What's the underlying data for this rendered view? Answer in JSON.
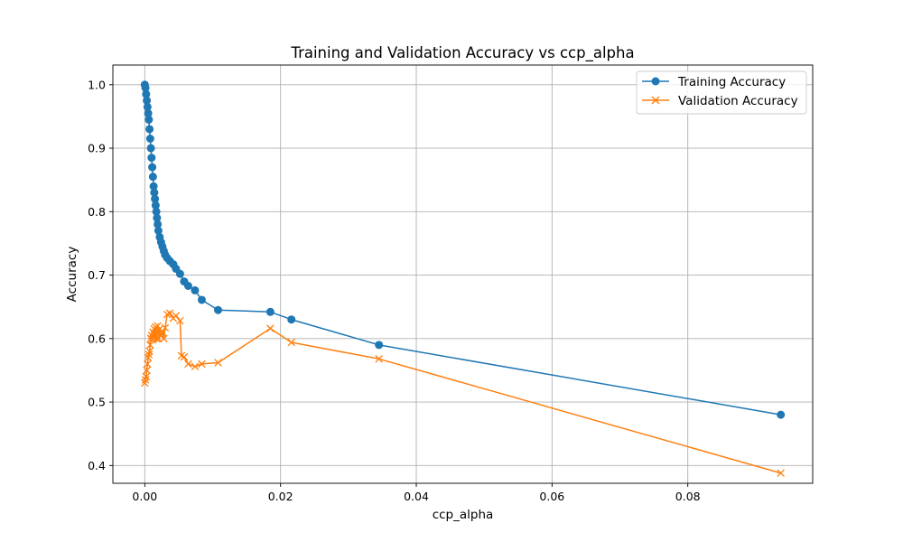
{
  "chart_data": {
    "type": "line",
    "title": "Training and Validation Accuracy vs ccp_alpha",
    "xlabel": "ccp_alpha",
    "ylabel": "Accuracy",
    "xlim": [
      -0.0047,
      0.0984
    ],
    "ylim": [
      0.372,
      1.031
    ],
    "xticks": [
      0.0,
      0.02,
      0.04,
      0.06,
      0.08
    ],
    "xtick_labels": [
      "0.00",
      "0.02",
      "0.04",
      "0.06",
      "0.08"
    ],
    "yticks": [
      0.4,
      0.5,
      0.6,
      0.7,
      0.8,
      0.9,
      1.0
    ],
    "ytick_labels": [
      "0.4",
      "0.5",
      "0.6",
      "0.7",
      "0.8",
      "0.9",
      "1.0"
    ],
    "grid": true,
    "legend_position": "upper right",
    "series": [
      {
        "name": "Training Accuracy",
        "color": "#1f77b4",
        "marker": "circle",
        "x": [
          0.0,
          0.0001,
          0.0002,
          0.0003,
          0.0004,
          0.0005,
          0.0006,
          0.0007,
          0.0008,
          0.0009,
          0.001,
          0.0011,
          0.0012,
          0.0013,
          0.0014,
          0.0015,
          0.0016,
          0.0017,
          0.0018,
          0.0019,
          0.002,
          0.0022,
          0.0024,
          0.0026,
          0.0028,
          0.003,
          0.0033,
          0.0037,
          0.0042,
          0.0046,
          0.0052,
          0.0058,
          0.0064,
          0.0074,
          0.0084,
          0.0108,
          0.0185,
          0.0216,
          0.0345,
          0.0937
        ],
        "y": [
          1.0,
          0.995,
          0.985,
          0.975,
          0.965,
          0.955,
          0.945,
          0.93,
          0.915,
          0.9,
          0.885,
          0.87,
          0.855,
          0.84,
          0.83,
          0.82,
          0.81,
          0.8,
          0.79,
          0.78,
          0.77,
          0.76,
          0.752,
          0.745,
          0.738,
          0.732,
          0.727,
          0.722,
          0.717,
          0.71,
          0.702,
          0.69,
          0.683,
          0.676,
          0.661,
          0.645,
          0.642,
          0.63,
          0.59,
          0.48
        ]
      },
      {
        "name": "Validation Accuracy",
        "color": "#ff7f0e",
        "marker": "x",
        "x": [
          0.0,
          0.0001,
          0.0002,
          0.0003,
          0.0004,
          0.0005,
          0.0006,
          0.0007,
          0.0008,
          0.0009,
          0.001,
          0.0011,
          0.0012,
          0.0013,
          0.0014,
          0.0015,
          0.0016,
          0.0017,
          0.0018,
          0.0019,
          0.002,
          0.0022,
          0.0024,
          0.0026,
          0.0028,
          0.003,
          0.0033,
          0.0037,
          0.0042,
          0.0046,
          0.0052,
          0.0054,
          0.0058,
          0.0064,
          0.0074,
          0.0084,
          0.0108,
          0.0185,
          0.0216,
          0.0345,
          0.0937
        ],
        "y": [
          0.53,
          0.535,
          0.54,
          0.55,
          0.56,
          0.57,
          0.575,
          0.58,
          0.59,
          0.6,
          0.605,
          0.598,
          0.61,
          0.6,
          0.615,
          0.605,
          0.618,
          0.6,
          0.612,
          0.62,
          0.6,
          0.615,
          0.605,
          0.61,
          0.6,
          0.617,
          0.638,
          0.64,
          0.632,
          0.636,
          0.628,
          0.573,
          0.571,
          0.56,
          0.556,
          0.56,
          0.562,
          0.616,
          0.594,
          0.568,
          0.388
        ]
      }
    ]
  }
}
